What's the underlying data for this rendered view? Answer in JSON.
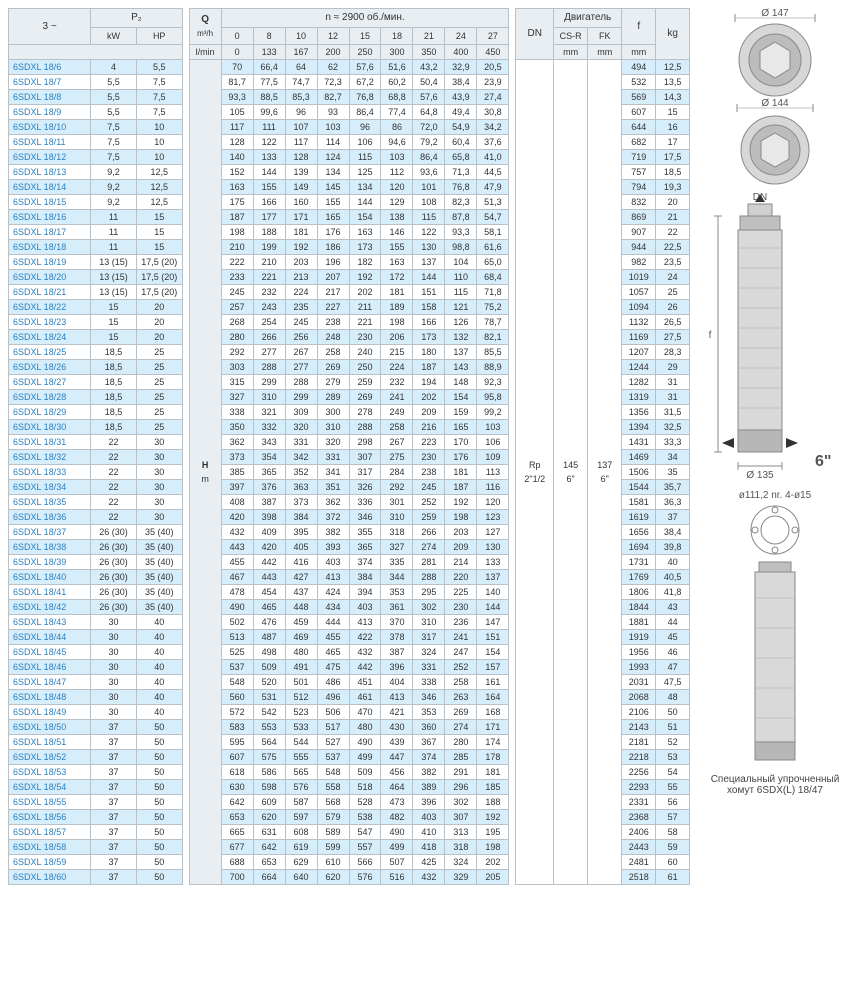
{
  "header": {
    "three_phase": "3 ~",
    "p2": "P₂",
    "q": "Q",
    "q_unit1": "m³/h",
    "q_unit2": "l/min",
    "rpm": "n ≈ 2900 об./мин.",
    "kW": "kW",
    "HP": "HP",
    "H": "H",
    "H_unit": "m",
    "DN": "DN",
    "motor": "Двигатель",
    "csr": "CS-R",
    "fk": "FK",
    "mm": "mm",
    "f": "f",
    "kg": "kg"
  },
  "flow_header_m3h": [
    "0",
    "8",
    "10",
    "12",
    "15",
    "18",
    "21",
    "24",
    "27"
  ],
  "flow_header_lmin": [
    "0",
    "133",
    "167",
    "200",
    "250",
    "300",
    "350",
    "400",
    "450"
  ],
  "dn_block": {
    "dn": "Rp 2\"1/2",
    "csr": "145 6\"",
    "fk": "137 6\""
  },
  "rows": [
    {
      "m": "6SDXL 18/6",
      "kw": "4",
      "hp": "5,5",
      "h": [
        "70",
        "66,4",
        "64",
        "62",
        "57,6",
        "51,6",
        "43,2",
        "32,9",
        "20,5"
      ],
      "f": "494",
      "kg": "12,5"
    },
    {
      "m": "6SDXL 18/7",
      "kw": "5,5",
      "hp": "7,5",
      "h": [
        "81,7",
        "77,5",
        "74,7",
        "72,3",
        "67,2",
        "60,2",
        "50,4",
        "38,4",
        "23,9"
      ],
      "f": "532",
      "kg": "13,5"
    },
    {
      "m": "6SDXL 18/8",
      "kw": "5,5",
      "hp": "7,5",
      "h": [
        "93,3",
        "88,5",
        "85,3",
        "82,7",
        "76,8",
        "68,8",
        "57,6",
        "43,9",
        "27,4"
      ],
      "f": "569",
      "kg": "14,3"
    },
    {
      "m": "6SDXL 18/9",
      "kw": "5,5",
      "hp": "7,5",
      "h": [
        "105",
        "99,6",
        "96",
        "93",
        "86,4",
        "77,4",
        "64,8",
        "49,4",
        "30,8"
      ],
      "f": "607",
      "kg": "15"
    },
    {
      "m": "6SDXL 18/10",
      "kw": "7,5",
      "hp": "10",
      "h": [
        "117",
        "111",
        "107",
        "103",
        "96",
        "86",
        "72,0",
        "54,9",
        "34,2"
      ],
      "f": "644",
      "kg": "16"
    },
    {
      "m": "6SDXL 18/11",
      "kw": "7,5",
      "hp": "10",
      "h": [
        "128",
        "122",
        "117",
        "114",
        "106",
        "94,6",
        "79,2",
        "60,4",
        "37,6"
      ],
      "f": "682",
      "kg": "17"
    },
    {
      "m": "6SDXL 18/12",
      "kw": "7,5",
      "hp": "10",
      "h": [
        "140",
        "133",
        "128",
        "124",
        "115",
        "103",
        "86,4",
        "65,8",
        "41,0"
      ],
      "f": "719",
      "kg": "17,5"
    },
    {
      "m": "6SDXL 18/13",
      "kw": "9,2",
      "hp": "12,5",
      "h": [
        "152",
        "144",
        "139",
        "134",
        "125",
        "112",
        "93,6",
        "71,3",
        "44,5"
      ],
      "f": "757",
      "kg": "18,5"
    },
    {
      "m": "6SDXL 18/14",
      "kw": "9,2",
      "hp": "12,5",
      "h": [
        "163",
        "155",
        "149",
        "145",
        "134",
        "120",
        "101",
        "76,8",
        "47,9"
      ],
      "f": "794",
      "kg": "19,3"
    },
    {
      "m": "6SDXL 18/15",
      "kw": "9,2",
      "hp": "12,5",
      "h": [
        "175",
        "166",
        "160",
        "155",
        "144",
        "129",
        "108",
        "82,3",
        "51,3"
      ],
      "f": "832",
      "kg": "20"
    },
    {
      "m": "6SDXL 18/16",
      "kw": "11",
      "hp": "15",
      "h": [
        "187",
        "177",
        "171",
        "165",
        "154",
        "138",
        "115",
        "87,8",
        "54,7"
      ],
      "f": "869",
      "kg": "21"
    },
    {
      "m": "6SDXL 18/17",
      "kw": "11",
      "hp": "15",
      "h": [
        "198",
        "188",
        "181",
        "176",
        "163",
        "146",
        "122",
        "93,3",
        "58,1"
      ],
      "f": "907",
      "kg": "22"
    },
    {
      "m": "6SDXL 18/18",
      "kw": "11",
      "hp": "15",
      "h": [
        "210",
        "199",
        "192",
        "186",
        "173",
        "155",
        "130",
        "98,8",
        "61,6"
      ],
      "f": "944",
      "kg": "22,5"
    },
    {
      "m": "6SDXL 18/19",
      "kw": "13 (15)",
      "hp": "17,5 (20)",
      "h": [
        "222",
        "210",
        "203",
        "196",
        "182",
        "163",
        "137",
        "104",
        "65,0"
      ],
      "f": "982",
      "kg": "23,5"
    },
    {
      "m": "6SDXL 18/20",
      "kw": "13 (15)",
      "hp": "17,5 (20)",
      "h": [
        "233",
        "221",
        "213",
        "207",
        "192",
        "172",
        "144",
        "110",
        "68,4"
      ],
      "f": "1019",
      "kg": "24"
    },
    {
      "m": "6SDXL 18/21",
      "kw": "13 (15)",
      "hp": "17,5 (20)",
      "h": [
        "245",
        "232",
        "224",
        "217",
        "202",
        "181",
        "151",
        "115",
        "71,8"
      ],
      "f": "1057",
      "kg": "25"
    },
    {
      "m": "6SDXL 18/22",
      "kw": "15",
      "hp": "20",
      "h": [
        "257",
        "243",
        "235",
        "227",
        "211",
        "189",
        "158",
        "121",
        "75,2"
      ],
      "f": "1094",
      "kg": "26"
    },
    {
      "m": "6SDXL 18/23",
      "kw": "15",
      "hp": "20",
      "h": [
        "268",
        "254",
        "245",
        "238",
        "221",
        "198",
        "166",
        "126",
        "78,7"
      ],
      "f": "1132",
      "kg": "26,5"
    },
    {
      "m": "6SDXL 18/24",
      "kw": "15",
      "hp": "20",
      "h": [
        "280",
        "266",
        "256",
        "248",
        "230",
        "206",
        "173",
        "132",
        "82,1"
      ],
      "f": "1169",
      "kg": "27,5"
    },
    {
      "m": "6SDXL 18/25",
      "kw": "18,5",
      "hp": "25",
      "h": [
        "292",
        "277",
        "267",
        "258",
        "240",
        "215",
        "180",
        "137",
        "85,5"
      ],
      "f": "1207",
      "kg": "28,3"
    },
    {
      "m": "6SDXL 18/26",
      "kw": "18,5",
      "hp": "25",
      "h": [
        "303",
        "288",
        "277",
        "269",
        "250",
        "224",
        "187",
        "143",
        "88,9"
      ],
      "f": "1244",
      "kg": "29"
    },
    {
      "m": "6SDXL 18/27",
      "kw": "18,5",
      "hp": "25",
      "h": [
        "315",
        "299",
        "288",
        "279",
        "259",
        "232",
        "194",
        "148",
        "92,3"
      ],
      "f": "1282",
      "kg": "31"
    },
    {
      "m": "6SDXL 18/28",
      "kw": "18,5",
      "hp": "25",
      "h": [
        "327",
        "310",
        "299",
        "289",
        "269",
        "241",
        "202",
        "154",
        "95,8"
      ],
      "f": "1319",
      "kg": "31"
    },
    {
      "m": "6SDXL 18/29",
      "kw": "18,5",
      "hp": "25",
      "h": [
        "338",
        "321",
        "309",
        "300",
        "278",
        "249",
        "209",
        "159",
        "99,2"
      ],
      "f": "1356",
      "kg": "31,5"
    },
    {
      "m": "6SDXL 18/30",
      "kw": "18,5",
      "hp": "25",
      "h": [
        "350",
        "332",
        "320",
        "310",
        "288",
        "258",
        "216",
        "165",
        "103"
      ],
      "f": "1394",
      "kg": "32,5"
    },
    {
      "m": "6SDXL 18/31",
      "kw": "22",
      "hp": "30",
      "h": [
        "362",
        "343",
        "331",
        "320",
        "298",
        "267",
        "223",
        "170",
        "106"
      ],
      "f": "1431",
      "kg": "33,3"
    },
    {
      "m": "6SDXL 18/32",
      "kw": "22",
      "hp": "30",
      "h": [
        "373",
        "354",
        "342",
        "331",
        "307",
        "275",
        "230",
        "176",
        "109"
      ],
      "f": "1469",
      "kg": "34"
    },
    {
      "m": "6SDXL 18/33",
      "kw": "22",
      "hp": "30",
      "h": [
        "385",
        "365",
        "352",
        "341",
        "317",
        "284",
        "238",
        "181",
        "113"
      ],
      "f": "1506",
      "kg": "35"
    },
    {
      "m": "6SDXL 18/34",
      "kw": "22",
      "hp": "30",
      "h": [
        "397",
        "376",
        "363",
        "351",
        "326",
        "292",
        "245",
        "187",
        "116"
      ],
      "f": "1544",
      "kg": "35,7"
    },
    {
      "m": "6SDXL 18/35",
      "kw": "22",
      "hp": "30",
      "h": [
        "408",
        "387",
        "373",
        "362",
        "336",
        "301",
        "252",
        "192",
        "120"
      ],
      "f": "1581",
      "kg": "36,3"
    },
    {
      "m": "6SDXL 18/36",
      "kw": "22",
      "hp": "30",
      "h": [
        "420",
        "398",
        "384",
        "372",
        "346",
        "310",
        "259",
        "198",
        "123"
      ],
      "f": "1619",
      "kg": "37"
    },
    {
      "m": "6SDXL 18/37",
      "kw": "26 (30)",
      "hp": "35 (40)",
      "h": [
        "432",
        "409",
        "395",
        "382",
        "355",
        "318",
        "266",
        "203",
        "127"
      ],
      "f": "1656",
      "kg": "38,4"
    },
    {
      "m": "6SDXL 18/38",
      "kw": "26 (30)",
      "hp": "35 (40)",
      "h": [
        "443",
        "420",
        "405",
        "393",
        "365",
        "327",
        "274",
        "209",
        "130"
      ],
      "f": "1694",
      "kg": "39,8"
    },
    {
      "m": "6SDXL 18/39",
      "kw": "26 (30)",
      "hp": "35 (40)",
      "h": [
        "455",
        "442",
        "416",
        "403",
        "374",
        "335",
        "281",
        "214",
        "133"
      ],
      "f": "1731",
      "kg": "40"
    },
    {
      "m": "6SDXL 18/40",
      "kw": "26 (30)",
      "hp": "35 (40)",
      "h": [
        "467",
        "443",
        "427",
        "413",
        "384",
        "344",
        "288",
        "220",
        "137"
      ],
      "f": "1769",
      "kg": "40,5"
    },
    {
      "m": "6SDXL 18/41",
      "kw": "26 (30)",
      "hp": "35 (40)",
      "h": [
        "478",
        "454",
        "437",
        "424",
        "394",
        "353",
        "295",
        "225",
        "140"
      ],
      "f": "1806",
      "kg": "41,8"
    },
    {
      "m": "6SDXL 18/42",
      "kw": "26 (30)",
      "hp": "35 (40)",
      "h": [
        "490",
        "465",
        "448",
        "434",
        "403",
        "361",
        "302",
        "230",
        "144"
      ],
      "f": "1844",
      "kg": "43"
    },
    {
      "m": "6SDXL 18/43",
      "kw": "30",
      "hp": "40",
      "h": [
        "502",
        "476",
        "459",
        "444",
        "413",
        "370",
        "310",
        "236",
        "147"
      ],
      "f": "1881",
      "kg": "44"
    },
    {
      "m": "6SDXL 18/44",
      "kw": "30",
      "hp": "40",
      "h": [
        "513",
        "487",
        "469",
        "455",
        "422",
        "378",
        "317",
        "241",
        "151"
      ],
      "f": "1919",
      "kg": "45"
    },
    {
      "m": "6SDXL 18/45",
      "kw": "30",
      "hp": "40",
      "h": [
        "525",
        "498",
        "480",
        "465",
        "432",
        "387",
        "324",
        "247",
        "154"
      ],
      "f": "1956",
      "kg": "46"
    },
    {
      "m": "6SDXL 18/46",
      "kw": "30",
      "hp": "40",
      "h": [
        "537",
        "509",
        "491",
        "475",
        "442",
        "396",
        "331",
        "252",
        "157"
      ],
      "f": "1993",
      "kg": "47"
    },
    {
      "m": "6SDXL 18/47",
      "kw": "30",
      "hp": "40",
      "h": [
        "548",
        "520",
        "501",
        "486",
        "451",
        "404",
        "338",
        "258",
        "161"
      ],
      "f": "2031",
      "kg": "47,5"
    },
    {
      "m": "6SDXL 18/48",
      "kw": "30",
      "hp": "40",
      "h": [
        "560",
        "531",
        "512",
        "496",
        "461",
        "413",
        "346",
        "263",
        "164"
      ],
      "f": "2068",
      "kg": "48"
    },
    {
      "m": "6SDXL 18/49",
      "kw": "30",
      "hp": "40",
      "h": [
        "572",
        "542",
        "523",
        "506",
        "470",
        "421",
        "353",
        "269",
        "168"
      ],
      "f": "2106",
      "kg": "50"
    },
    {
      "m": "6SDXL 18/50",
      "kw": "37",
      "hp": "50",
      "h": [
        "583",
        "553",
        "533",
        "517",
        "480",
        "430",
        "360",
        "274",
        "171"
      ],
      "f": "2143",
      "kg": "51"
    },
    {
      "m": "6SDXL 18/51",
      "kw": "37",
      "hp": "50",
      "h": [
        "595",
        "564",
        "544",
        "527",
        "490",
        "439",
        "367",
        "280",
        "174"
      ],
      "f": "2181",
      "kg": "52"
    },
    {
      "m": "6SDXL 18/52",
      "kw": "37",
      "hp": "50",
      "h": [
        "607",
        "575",
        "555",
        "537",
        "499",
        "447",
        "374",
        "285",
        "178"
      ],
      "f": "2218",
      "kg": "53"
    },
    {
      "m": "6SDXL 18/53",
      "kw": "37",
      "hp": "50",
      "h": [
        "618",
        "586",
        "565",
        "548",
        "509",
        "456",
        "382",
        "291",
        "181"
      ],
      "f": "2256",
      "kg": "54"
    },
    {
      "m": "6SDXL 18/54",
      "kw": "37",
      "hp": "50",
      "h": [
        "630",
        "598",
        "576",
        "558",
        "518",
        "464",
        "389",
        "296",
        "185"
      ],
      "f": "2293",
      "kg": "55"
    },
    {
      "m": "6SDXL 18/55",
      "kw": "37",
      "hp": "50",
      "h": [
        "642",
        "609",
        "587",
        "568",
        "528",
        "473",
        "396",
        "302",
        "188"
      ],
      "f": "2331",
      "kg": "56"
    },
    {
      "m": "6SDXL 18/56",
      "kw": "37",
      "hp": "50",
      "h": [
        "653",
        "620",
        "597",
        "579",
        "538",
        "482",
        "403",
        "307",
        "192"
      ],
      "f": "2368",
      "kg": "57"
    },
    {
      "m": "6SDXL 18/57",
      "kw": "37",
      "hp": "50",
      "h": [
        "665",
        "631",
        "608",
        "589",
        "547",
        "490",
        "410",
        "313",
        "195"
      ],
      "f": "2406",
      "kg": "58"
    },
    {
      "m": "6SDXL 18/58",
      "kw": "37",
      "hp": "50",
      "h": [
        "677",
        "642",
        "619",
        "599",
        "557",
        "499",
        "418",
        "318",
        "198"
      ],
      "f": "2443",
      "kg": "59"
    },
    {
      "m": "6SDXL 18/59",
      "kw": "37",
      "hp": "50",
      "h": [
        "688",
        "653",
        "629",
        "610",
        "566",
        "507",
        "425",
        "324",
        "202"
      ],
      "f": "2481",
      "kg": "60"
    },
    {
      "m": "6SDXL 18/60",
      "kw": "37",
      "hp": "50",
      "h": [
        "700",
        "664",
        "640",
        "620",
        "576",
        "516",
        "432",
        "329",
        "205"
      ],
      "f": "2518",
      "kg": "61"
    }
  ],
  "figs": {
    "d147": "Ø 147",
    "d144": "Ø 144",
    "dn": "DN",
    "f": "f",
    "d135": "Ø 135",
    "six": "6\"",
    "flange": "ø111,2   nr. 4-ø15",
    "caption": "Специальный упрочненный хомут 6SDX(L) 18/47"
  }
}
